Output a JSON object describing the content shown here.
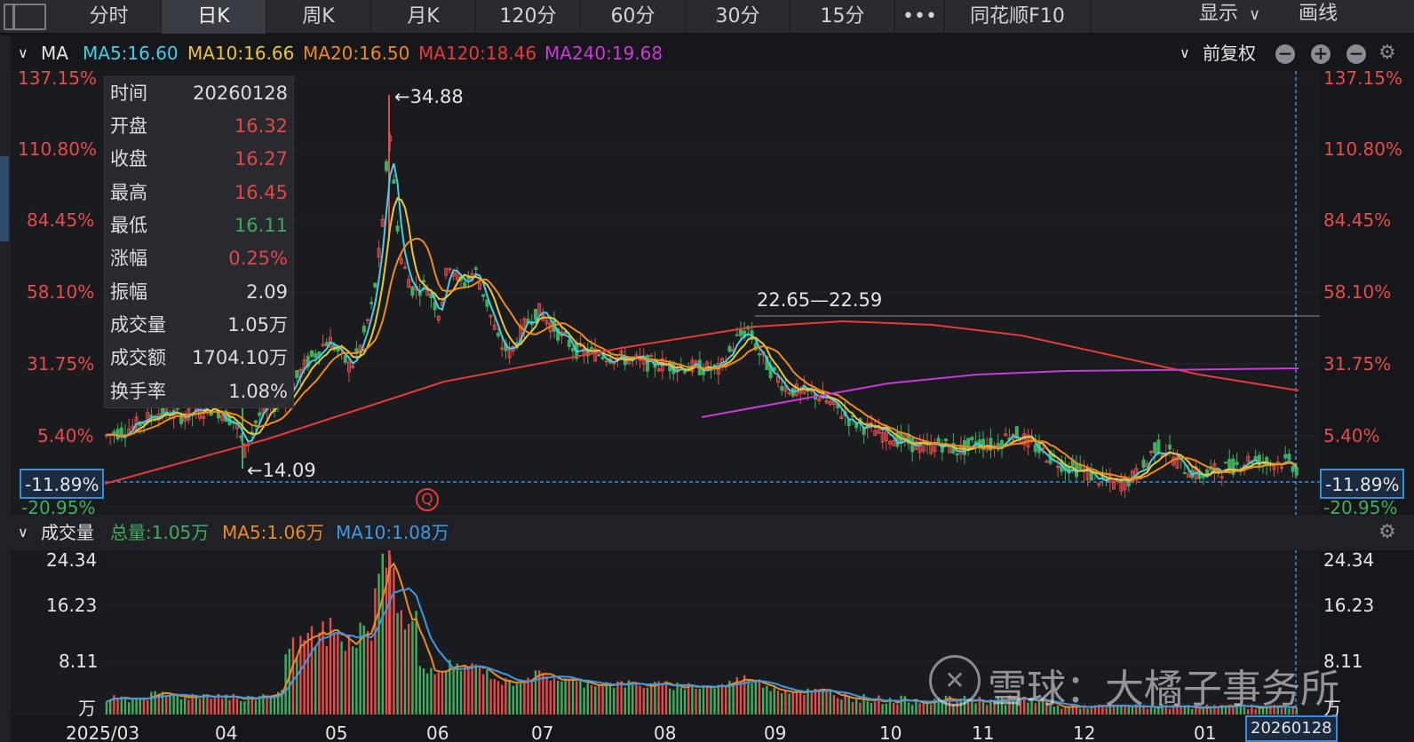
{
  "tabs": [
    {
      "label": "分时",
      "active": false
    },
    {
      "label": "日K",
      "active": true
    },
    {
      "label": "周K",
      "active": false
    },
    {
      "label": "月K",
      "active": false
    },
    {
      "label": "120分",
      "active": false
    },
    {
      "label": "60分",
      "active": false
    },
    {
      "label": "30分",
      "active": false
    },
    {
      "label": "15分",
      "active": false
    },
    {
      "label": "•••",
      "active": false
    },
    {
      "label": "同花顺F10",
      "active": false
    }
  ],
  "toolbar": {
    "display_label": "显示",
    "draw_label": "画线"
  },
  "ma_header": {
    "indicator": "MA",
    "ma5": "MA5:16.60",
    "ma10": "MA10:16.66",
    "ma20": "MA20:16.50",
    "ma120": "MA120:18.46",
    "ma240": "MA240:19.68",
    "adjust": "前复权",
    "colors": {
      "ma5": "#3fd0e8",
      "ma10": "#ecc531",
      "ma20": "#f08a1c",
      "ma120": "#e83a3a",
      "ma240": "#c93ad6"
    }
  },
  "price_axis": {
    "labels": [
      "137.15%",
      "110.80%",
      "84.45%",
      "58.10%",
      "31.75%",
      "5.40%",
      "-20.95%"
    ],
    "crosshair_value": "-11.89%"
  },
  "tooltip": {
    "rows": [
      {
        "key": "时间",
        "value": "20260128",
        "tone": "white"
      },
      {
        "key": "开盘",
        "value": "16.32",
        "tone": "red"
      },
      {
        "key": "收盘",
        "value": "16.27",
        "tone": "red"
      },
      {
        "key": "最高",
        "value": "16.45",
        "tone": "red"
      },
      {
        "key": "最低",
        "value": "16.11",
        "tone": "green"
      },
      {
        "key": "涨幅",
        "value": "0.25%",
        "tone": "red"
      },
      {
        "key": "振幅",
        "value": "2.09",
        "tone": "white"
      },
      {
        "key": "成交量",
        "value": "1.05万",
        "tone": "white"
      },
      {
        "key": "成交额",
        "value": "1704.10万",
        "tone": "white"
      },
      {
        "key": "换手率",
        "value": "1.08%",
        "tone": "white"
      }
    ]
  },
  "annotations": {
    "high": "←34.88",
    "low": "←14.09",
    "range": "22.65—22.59",
    "marker": "Q"
  },
  "volume_header": {
    "title": "成交量",
    "total": "总量:1.05万",
    "ma5": "MA5:1.06万",
    "ma10": "MA10:1.08万"
  },
  "volume_axis": {
    "labels": [
      "24.34",
      "16.23",
      "8.11",
      "万"
    ]
  },
  "date_axis": {
    "labels": [
      "2025/03",
      "04",
      "05",
      "06",
      "07",
      "08",
      "09",
      "10",
      "11",
      "12",
      "01"
    ],
    "crosshair_date": "20260128"
  },
  "watermark": {
    "text": "雪球：大橘子事务所"
  },
  "chart_data": {
    "type": "candlestick",
    "series": [
      {
        "name": "MA5",
        "value": 16.6
      },
      {
        "name": "MA10",
        "value": 16.66
      },
      {
        "name": "MA20",
        "value": 16.5
      },
      {
        "name": "MA120",
        "value": 18.46
      },
      {
        "name": "MA240",
        "value": 19.68
      }
    ],
    "y_axis_labels": [
      "137.15%",
      "110.80%",
      "84.45%",
      "58.10%",
      "31.75%",
      "5.40%",
      "-20.95%"
    ],
    "ylim": [
      -20.95,
      137.15
    ],
    "volume_ylim": [
      0,
      24.34
    ],
    "price_high": 34.88,
    "price_low": 14.09
  }
}
